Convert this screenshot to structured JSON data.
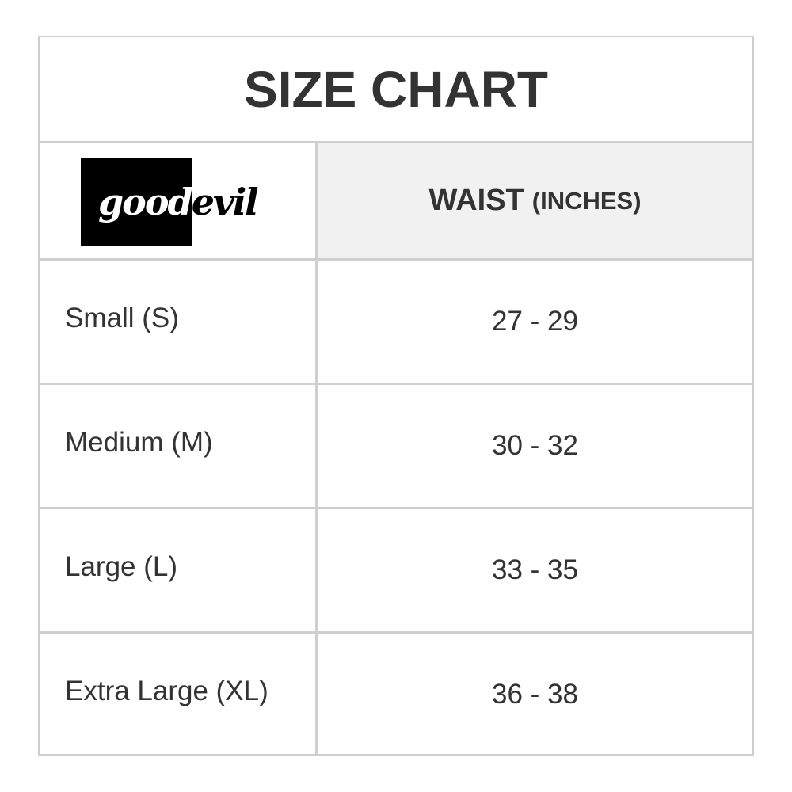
{
  "title": "SIZE CHART",
  "logo": {
    "text": "goodevil"
  },
  "header": {
    "main": "WAIST",
    "unit": "(INCHES)"
  },
  "rows": [
    {
      "size": "Small (S)",
      "waist": "27 - 29"
    },
    {
      "size": "Medium (M)",
      "waist": "30 - 32"
    },
    {
      "size": "Large (L)",
      "waist": "33 - 35"
    },
    {
      "size": "Extra Large (XL)",
      "waist": "36 - 38"
    }
  ],
  "colors": {
    "border": "#cfcfcf",
    "header_bg": "#f1f1f1",
    "text": "#333333"
  }
}
